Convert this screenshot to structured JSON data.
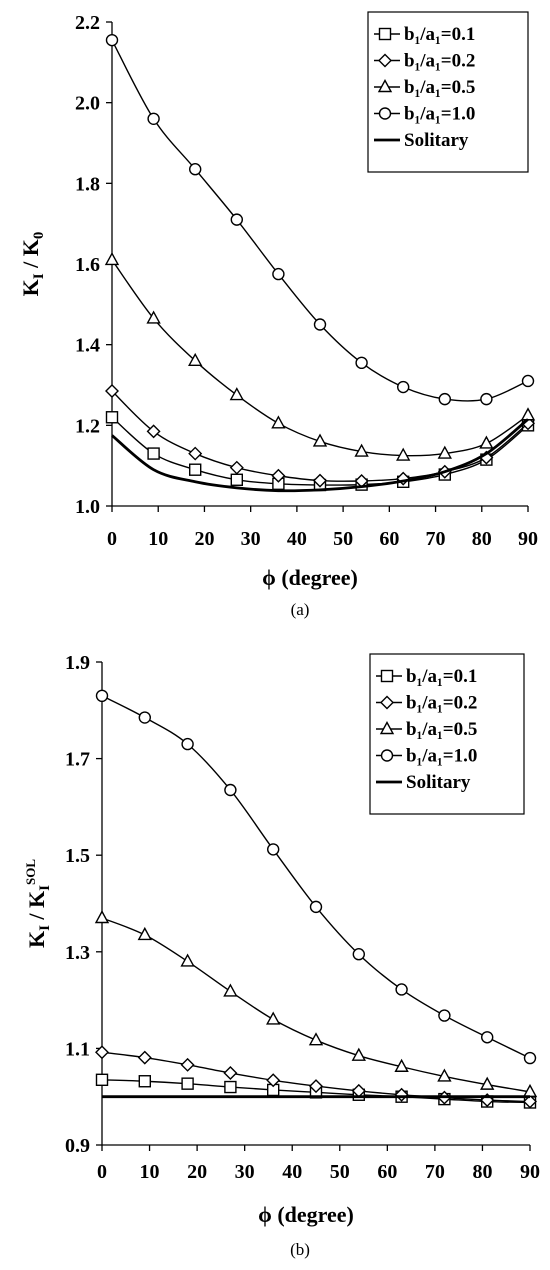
{
  "chart_data": [
    {
      "type": "line",
      "caption": "(a)",
      "xlabel": "ϕ (degree)",
      "ylabel_main": "K",
      "ylabel_sub": "I",
      "ylabel_mid": " / K",
      "ylabel_sub2": "0",
      "ylabel_sup2": "",
      "xlim": [
        0,
        90
      ],
      "ylim": [
        1.0,
        2.2
      ],
      "xticks": [
        0,
        10,
        20,
        30,
        40,
        50,
        60,
        70,
        80,
        90
      ],
      "yticks": [
        1.0,
        1.2,
        1.4,
        1.6,
        1.8,
        2.0,
        2.2
      ],
      "ytick_labels": [
        "1.0",
        "1.2",
        "1.4",
        "1.6",
        "1.8",
        "2.0",
        "2.2"
      ],
      "legend_position": "top-right",
      "x": [
        0,
        9,
        18,
        27,
        36,
        45,
        54,
        63,
        72,
        81,
        90
      ],
      "series": [
        {
          "name": "b₁/a₁=0.1",
          "marker": "square",
          "values": [
            1.22,
            1.13,
            1.09,
            1.065,
            1.055,
            1.052,
            1.053,
            1.06,
            1.078,
            1.115,
            1.2
          ]
        },
        {
          "name": "b₁/a₁=0.2",
          "marker": "diamond",
          "values": [
            1.285,
            1.185,
            1.13,
            1.095,
            1.075,
            1.063,
            1.062,
            1.068,
            1.085,
            1.12,
            1.205
          ]
        },
        {
          "name": "b₁/a₁=0.5",
          "marker": "triangle",
          "values": [
            1.61,
            1.465,
            1.36,
            1.275,
            1.205,
            1.16,
            1.135,
            1.125,
            1.13,
            1.155,
            1.225
          ]
        },
        {
          "name": "b₁/a₁=1.0",
          "marker": "circle",
          "values": [
            2.155,
            1.96,
            1.835,
            1.71,
            1.575,
            1.45,
            1.355,
            1.295,
            1.265,
            1.265,
            1.31
          ]
        },
        {
          "name": "Solitary",
          "marker": "none",
          "values": [
            1.175,
            1.09,
            1.06,
            1.045,
            1.038,
            1.04,
            1.048,
            1.062,
            1.085,
            1.13,
            1.215
          ]
        }
      ]
    },
    {
      "type": "line",
      "caption": "(b)",
      "xlabel": "ϕ (degree)",
      "ylabel_main": "K",
      "ylabel_sub": "I",
      "ylabel_mid": " / K",
      "ylabel_sub2": "I",
      "ylabel_sup2": "SOL",
      "xlim": [
        0,
        90
      ],
      "ylim": [
        0.9,
        1.9
      ],
      "xticks": [
        0,
        10,
        20,
        30,
        40,
        50,
        60,
        70,
        80,
        90
      ],
      "yticks": [
        0.9,
        1.1,
        1.3,
        1.5,
        1.7,
        1.9
      ],
      "ytick_labels": [
        "0.9",
        "1.1",
        "1.3",
        "1.5",
        "1.7",
        "1.9"
      ],
      "legend_position": "top-right",
      "x": [
        0,
        9,
        18,
        27,
        36,
        45,
        54,
        63,
        72,
        81,
        90
      ],
      "series": [
        {
          "name": "b₁/a₁=0.1",
          "marker": "square",
          "values": [
            1.035,
            1.032,
            1.027,
            1.02,
            1.014,
            1.009,
            1.004,
            1.0,
            0.995,
            0.99,
            0.988
          ]
        },
        {
          "name": "b₁/a₁=0.2",
          "marker": "diamond",
          "values": [
            1.092,
            1.081,
            1.066,
            1.049,
            1.034,
            1.022,
            1.012,
            1.004,
            0.998,
            0.993,
            0.99
          ]
        },
        {
          "name": "b₁/a₁=0.5",
          "marker": "triangle",
          "values": [
            1.37,
            1.335,
            1.28,
            1.218,
            1.16,
            1.117,
            1.085,
            1.062,
            1.042,
            1.025,
            1.01
          ]
        },
        {
          "name": "b₁/a₁=1.0",
          "marker": "circle",
          "values": [
            1.83,
            1.785,
            1.73,
            1.635,
            1.512,
            1.393,
            1.295,
            1.222,
            1.168,
            1.123,
            1.08
          ]
        },
        {
          "name": "Solitary",
          "marker": "none",
          "values": [
            1.0,
            1.0,
            1.0,
            1.0,
            1.0,
            1.0,
            1.0,
            1.0,
            1.0,
            1.0,
            1.0
          ]
        }
      ]
    }
  ]
}
